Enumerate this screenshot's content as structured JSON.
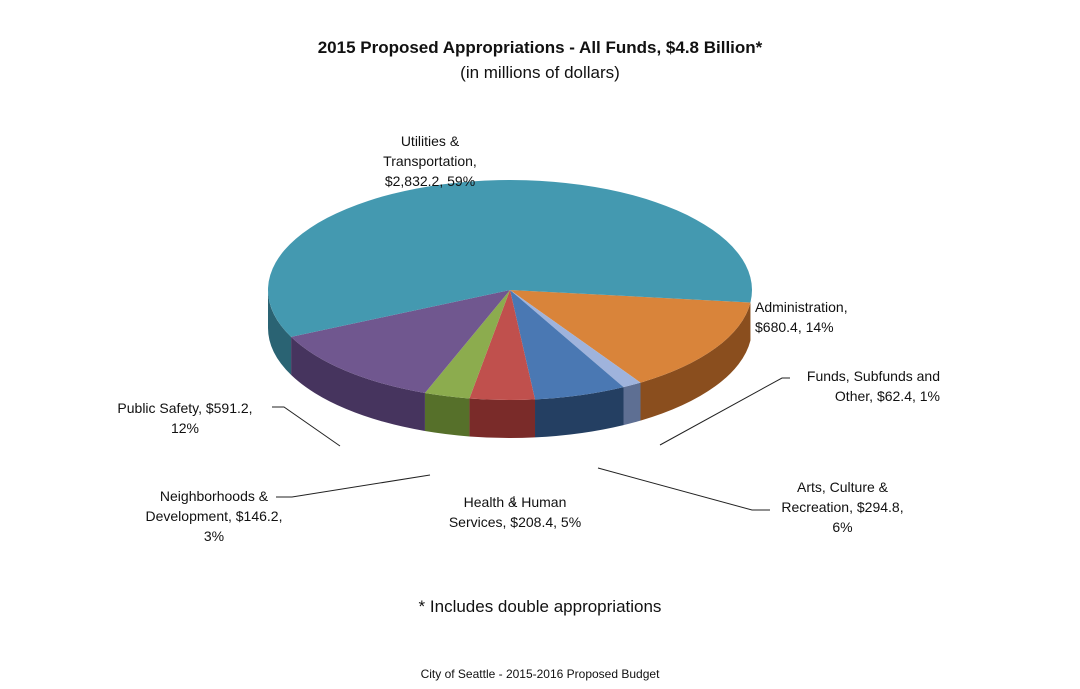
{
  "chart_data": {
    "type": "pie",
    "title": "2015 Proposed Appropriations - All Funds, $4.8 Billion*",
    "subtitle": "(in millions of dollars)",
    "slices": [
      {
        "name": "Administration",
        "value": 680.4,
        "percent": 14,
        "color": "#d9843a",
        "side_color": "#8a4e1e",
        "label_lines": [
          "Administration,",
          "$680.4, 14%"
        ]
      },
      {
        "name": "Funds, Subfunds and Other",
        "value": 62.4,
        "percent": 1,
        "color": "#9fb3dc",
        "side_color": "#5e6f93",
        "label_lines": [
          "Funds, Subfunds and",
          "Other, $62.4, 1%"
        ]
      },
      {
        "name": "Arts, Culture & Recreation",
        "value": 294.8,
        "percent": 6,
        "color": "#4a78b3",
        "side_color": "#243f62",
        "label_lines": [
          "Arts, Culture &",
          "Recreation, $294.8,",
          "6%"
        ]
      },
      {
        "name": "Health & Human Services",
        "value": 208.4,
        "percent": 5,
        "color": "#c0504d",
        "side_color": "#7a2b29",
        "label_lines": [
          "Health & Human",
          "Services, $208.4, 5%"
        ]
      },
      {
        "name": "Neighborhoods & Development",
        "value": 146.2,
        "percent": 3,
        "color": "#8cac4e",
        "side_color": "#56702a",
        "label_lines": [
          "Neighborhoods &",
          "Development, $146.2,",
          "3%"
        ]
      },
      {
        "name": "Public Safety",
        "value": 591.2,
        "percent": 12,
        "color": "#70578f",
        "side_color": "#46345e",
        "label_lines": [
          "Public Safety, $591.2,",
          "12%"
        ]
      },
      {
        "name": "Utilities & Transportation",
        "value": 2832.2,
        "percent": 59,
        "color": "#4499b0",
        "side_color": "#2a6373",
        "label_lines": [
          "Utilities &",
          "Transportation,",
          "$2,832.2, 59%"
        ]
      }
    ],
    "footnote": "* Includes double appropriations"
  },
  "footer": "City of Seattle - 2015-2016 Proposed Budget"
}
